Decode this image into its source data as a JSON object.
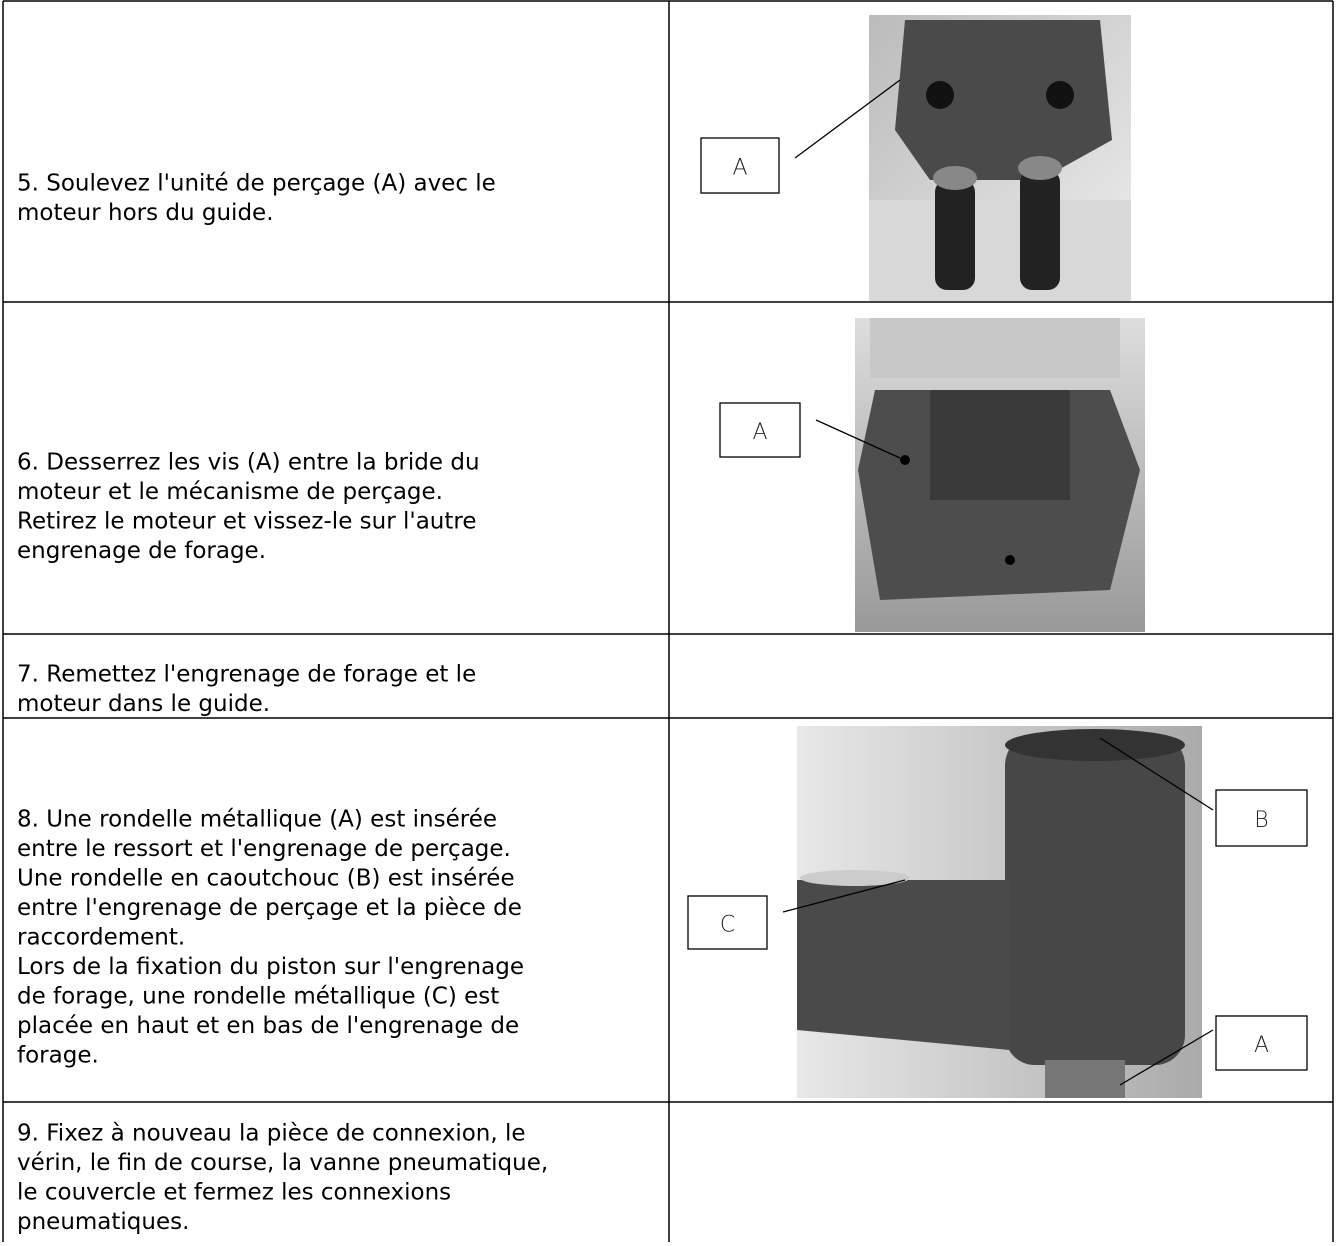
{
  "rows": [
    {
      "text": [
        "5. Soulevez l'unité de perçage (A) avec le",
        "moteur hors du guide."
      ],
      "callouts": [
        "A"
      ]
    },
    {
      "text": [
        "6. Desserrez les vis (A) entre la bride du",
        "moteur et le mécanisme de perçage.",
        "Retirez le moteur et vissez-le sur l'autre",
        "engrenage de forage."
      ],
      "callouts": [
        "A"
      ]
    },
    {
      "text": [
        "7. Remettez l'engrenage de forage et le",
        "moteur dans le guide."
      ],
      "callouts": []
    },
    {
      "text": [
        "8. Une rondelle métallique (A) est insérée",
        "entre le ressort et l'engrenage de perçage.",
        "Une rondelle en caoutchouc (B) est insérée",
        "entre l'engrenage de perçage et la pièce de",
        "raccordement.",
        "Lors de la fixation du piston sur l'engrenage",
        "de forage, une rondelle métallique (C) est",
        "placée en haut et en bas de l'engrenage de",
        "forage."
      ],
      "callouts": [
        "B",
        "C",
        "A"
      ]
    },
    {
      "text": [
        "9. Fixez à nouveau la pièce de connexion, le",
        "vérin, le fin de course, la vanne pneumatique,",
        "le couvercle et fermez les connexions",
        "pneumatiques."
      ],
      "callouts": []
    }
  ]
}
